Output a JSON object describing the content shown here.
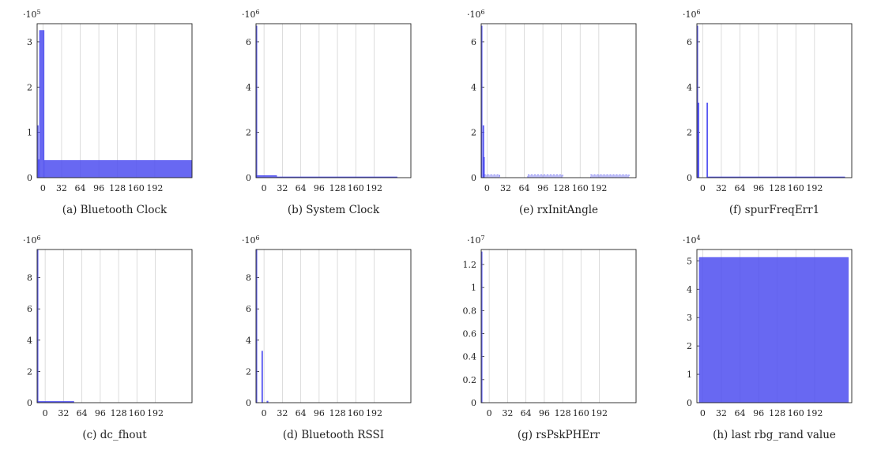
{
  "figure": {
    "bar_color": "#4d4df0",
    "grid_color": "#d4d4d4",
    "axis_color": "#222222"
  },
  "chart_data": [
    {
      "id": "a",
      "type": "bar",
      "caption": "(a) Bluetooth Clock",
      "multiplier": {
        "base": "·10",
        "exp": "5"
      },
      "xlim": [
        -10,
        256
      ],
      "ylim": [
        0,
        3.4
      ],
      "xticks": [
        "0",
        "32",
        "64",
        "96",
        "128",
        "160",
        "192"
      ],
      "yticks": [
        "0",
        "1",
        "2",
        "3"
      ],
      "bars": [
        {
          "x0": -10,
          "x1": -8,
          "y": 1.15
        },
        {
          "x0": -8,
          "x1": -6,
          "y": 0.4
        },
        {
          "x0": -6,
          "x1": 2,
          "y": 3.25
        },
        {
          "x0": 2,
          "x1": 256,
          "y": 0.38
        }
      ]
    },
    {
      "id": "b",
      "type": "bar",
      "caption": "(b) System Clock",
      "multiplier": {
        "base": "·10",
        "exp": "6"
      },
      "xlim": [
        -14,
        256
      ],
      "ylim": [
        0,
        6.8
      ],
      "xticks": [
        "0",
        "32",
        "64",
        "96",
        "128",
        "160",
        "192"
      ],
      "yticks": [
        "0",
        "2",
        "4",
        "6"
      ],
      "bars": [
        {
          "x0": -14,
          "x1": -13,
          "y": 6.7
        },
        {
          "x0": -13,
          "x1": 22,
          "y": 0.09
        },
        {
          "x0": 22,
          "x1": 232,
          "y": 0.02
        }
      ]
    },
    {
      "id": "e",
      "type": "bar",
      "caption": "(e) rxInitAngle",
      "multiplier": {
        "base": "·10",
        "exp": "6"
      },
      "xlim": [
        -10,
        256
      ],
      "ylim": [
        0,
        6.8
      ],
      "xticks": [
        "0",
        "32",
        "64",
        "96",
        "128",
        "160",
        "192"
      ],
      "yticks": [
        "0",
        "2",
        "4",
        "6"
      ],
      "bars": [
        {
          "x0": -10,
          "x1": -9,
          "y": 6.7
        },
        {
          "x0": -7,
          "x1": -6,
          "y": 2.3
        },
        {
          "x0": -6,
          "x1": -5,
          "y": 0.9
        },
        {
          "x0": -5,
          "x1": 22,
          "y": 0.12,
          "dashed": true
        },
        {
          "x0": 70,
          "x1": 130,
          "y": 0.12,
          "dashed": true
        },
        {
          "x0": 178,
          "x1": 244,
          "y": 0.12,
          "dashed": true
        }
      ]
    },
    {
      "id": "f",
      "type": "bar",
      "caption": "(f) spurFreqErr1",
      "multiplier": {
        "base": "·10",
        "exp": "6"
      },
      "xlim": [
        -10,
        256
      ],
      "ylim": [
        0,
        6.8
      ],
      "xticks": [
        "0",
        "32",
        "64",
        "96",
        "128",
        "160",
        "192"
      ],
      "yticks": [
        "0",
        "2",
        "4",
        "6"
      ],
      "bars": [
        {
          "x0": -10,
          "x1": -9,
          "y": 6.7
        },
        {
          "x0": -8,
          "x1": -7,
          "y": 3.3
        },
        {
          "x0": 7,
          "x1": 8,
          "y": 3.3
        },
        {
          "x0": 8,
          "x1": 244,
          "y": 0.01
        }
      ]
    },
    {
      "id": "c",
      "type": "bar",
      "caption": "(c) dc_fhout",
      "multiplier": {
        "base": "·10",
        "exp": "6"
      },
      "xlim": [
        -14,
        256
      ],
      "ylim": [
        0,
        9.8
      ],
      "xticks": [
        "0",
        "32",
        "64",
        "96",
        "128",
        "160",
        "192"
      ],
      "yticks": [
        "0",
        "2",
        "4",
        "6",
        "8"
      ],
      "bars": [
        {
          "x0": -14,
          "x1": -13,
          "y": 9.8
        },
        {
          "x0": -13,
          "x1": 50,
          "y": 0.08
        }
      ]
    },
    {
      "id": "d",
      "type": "bar",
      "caption": "(d) Bluetooth RSSI",
      "multiplier": {
        "base": "·10",
        "exp": "6"
      },
      "xlim": [
        -14,
        256
      ],
      "ylim": [
        0,
        9.8
      ],
      "xticks": [
        "0",
        "32",
        "64",
        "96",
        "128",
        "160",
        "192"
      ],
      "yticks": [
        "0",
        "2",
        "4",
        "6",
        "8"
      ],
      "bars": [
        {
          "x0": -14,
          "x1": -13,
          "y": 9.8
        },
        {
          "x0": -4,
          "x1": -3,
          "y": 3.3
        },
        {
          "x0": 5,
          "x1": 7,
          "y": 0.1
        }
      ]
    },
    {
      "id": "g",
      "type": "bar",
      "caption": "(g) rsPskPHErr",
      "multiplier": {
        "base": "·10",
        "exp": "7"
      },
      "xlim": [
        -14,
        256
      ],
      "ylim": [
        0,
        1.33
      ],
      "xticks": [
        "0",
        "32",
        "64",
        "96",
        "128",
        "160",
        "192"
      ],
      "yticks": [
        "0",
        "0.2",
        "0.4",
        "0.6",
        "0.8",
        "1",
        "1.2"
      ],
      "bars": [
        {
          "x0": -14,
          "x1": -13,
          "y": 1.31
        }
      ]
    },
    {
      "id": "h",
      "type": "bar",
      "caption": "(h) last rbg_rand value",
      "multiplier": {
        "base": "·10",
        "exp": "4"
      },
      "xlim": [
        -10,
        256
      ],
      "ylim": [
        0,
        5.4
      ],
      "xticks": [
        "0",
        "32",
        "64",
        "96",
        "128",
        "160",
        "192"
      ],
      "yticks": [
        "0",
        "1",
        "2",
        "3",
        "4",
        "5"
      ],
      "bars": [
        {
          "x0": -6,
          "x1": 250,
          "y": 5.12
        }
      ]
    }
  ]
}
